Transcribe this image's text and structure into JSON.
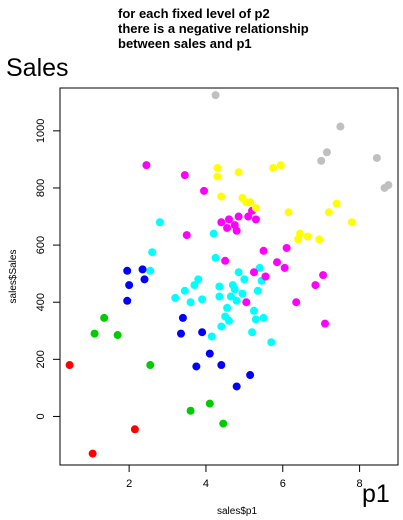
{
  "chart_data": {
    "type": "scatter",
    "title": "",
    "xlabel": "sales$p1",
    "ylabel": "sales$Sales",
    "xlim": [
      0.2,
      9.0
    ],
    "ylim": [
      -170,
      1150
    ],
    "xticks": [
      2,
      4,
      6,
      8
    ],
    "yticks": [
      0,
      200,
      400,
      600,
      800,
      1000
    ],
    "xtick_labels": [
      "2",
      "4",
      "6",
      "8"
    ],
    "ytick_labels": [
      "0",
      "200",
      "400",
      "600",
      "800",
      "1000"
    ],
    "grid": false,
    "legend": "none",
    "annotations": {
      "note_line1": "for each fixed level of p2",
      "note_line2": "there is a negative relationship",
      "note_line3": "between sales and p1",
      "y_big_label": "Sales",
      "x_big_label": "p1"
    },
    "series": [
      {
        "color": "#ff0000",
        "points": [
          [
            0.45,
            180
          ],
          [
            1.05,
            -130
          ],
          [
            2.15,
            -45
          ]
        ]
      },
      {
        "color": "#00cc00",
        "points": [
          [
            1.1,
            290
          ],
          [
            1.35,
            345
          ],
          [
            1.7,
            285
          ],
          [
            2.55,
            180
          ],
          [
            3.6,
            20
          ],
          [
            4.1,
            45
          ],
          [
            4.45,
            -25
          ]
        ]
      },
      {
        "color": "#0000ff",
        "points": [
          [
            1.95,
            510
          ],
          [
            2.0,
            460
          ],
          [
            1.95,
            405
          ],
          [
            2.35,
            515
          ],
          [
            2.4,
            480
          ],
          [
            3.4,
            345
          ],
          [
            3.35,
            290
          ],
          [
            3.75,
            175
          ],
          [
            3.9,
            295
          ],
          [
            4.1,
            220
          ],
          [
            4.4,
            180
          ],
          [
            4.8,
            105
          ],
          [
            5.15,
            145
          ]
        ]
      },
      {
        "color": "#00ffff",
        "points": [
          [
            2.55,
            510
          ],
          [
            2.6,
            575
          ],
          [
            2.8,
            680
          ],
          [
            3.2,
            415
          ],
          [
            3.45,
            440
          ],
          [
            3.6,
            400
          ],
          [
            3.7,
            460
          ],
          [
            3.8,
            480
          ],
          [
            3.9,
            410
          ],
          [
            4.2,
            640
          ],
          [
            4.25,
            555
          ],
          [
            4.35,
            455
          ],
          [
            4.4,
            315
          ],
          [
            4.5,
            350
          ],
          [
            4.6,
            335
          ],
          [
            4.55,
            380
          ],
          [
            4.65,
            420
          ],
          [
            4.7,
            460
          ],
          [
            4.75,
            445
          ],
          [
            4.8,
            405
          ],
          [
            4.85,
            505
          ],
          [
            5.0,
            480
          ],
          [
            5.2,
            295
          ],
          [
            5.25,
            370
          ],
          [
            5.3,
            340
          ],
          [
            5.35,
            440
          ],
          [
            5.4,
            520
          ],
          [
            5.45,
            475
          ],
          [
            5.5,
            345
          ],
          [
            5.7,
            260
          ],
          [
            4.15,
            280
          ],
          [
            4.35,
            420
          ],
          [
            4.95,
            430
          ]
        ]
      },
      {
        "color": "#ff00ff",
        "points": [
          [
            2.45,
            880
          ],
          [
            3.45,
            845
          ],
          [
            3.5,
            635
          ],
          [
            3.95,
            790
          ],
          [
            4.4,
            680
          ],
          [
            4.5,
            545
          ],
          [
            4.55,
            660
          ],
          [
            4.6,
            690
          ],
          [
            4.75,
            670
          ],
          [
            4.8,
            650
          ],
          [
            4.85,
            700
          ],
          [
            5.1,
            700
          ],
          [
            5.2,
            720
          ],
          [
            5.25,
            505
          ],
          [
            5.3,
            690
          ],
          [
            5.5,
            580
          ],
          [
            5.55,
            490
          ],
          [
            5.85,
            540
          ],
          [
            6.05,
            520
          ],
          [
            6.1,
            590
          ],
          [
            6.35,
            400
          ],
          [
            6.85,
            460
          ],
          [
            7.05,
            495
          ],
          [
            7.1,
            325
          ],
          [
            5.05,
            400
          ]
        ]
      },
      {
        "color": "#ffff00",
        "points": [
          [
            4.3,
            870
          ],
          [
            4.3,
            840
          ],
          [
            4.4,
            770
          ],
          [
            4.85,
            855
          ],
          [
            4.95,
            765
          ],
          [
            5.05,
            750
          ],
          [
            5.15,
            750
          ],
          [
            5.3,
            730
          ],
          [
            5.75,
            870
          ],
          [
            5.95,
            880
          ],
          [
            6.15,
            715
          ],
          [
            6.4,
            620
          ],
          [
            6.45,
            640
          ],
          [
            6.65,
            630
          ],
          [
            6.95,
            620
          ],
          [
            7.2,
            715
          ],
          [
            7.4,
            745
          ],
          [
            7.8,
            680
          ]
        ]
      },
      {
        "color": "#c0c0c0",
        "points": [
          [
            4.25,
            1125
          ],
          [
            7.0,
            895
          ],
          [
            7.15,
            925
          ],
          [
            7.5,
            1015
          ],
          [
            8.45,
            905
          ],
          [
            8.65,
            800
          ],
          [
            8.75,
            810
          ]
        ]
      }
    ]
  }
}
